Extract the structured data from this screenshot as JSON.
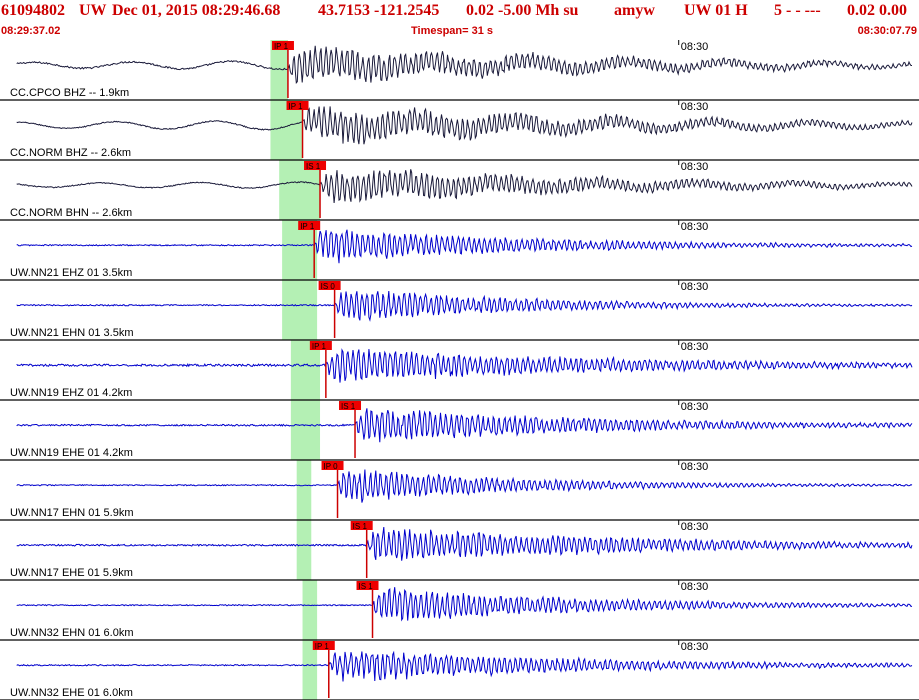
{
  "header": {
    "event_id": "61094802",
    "network": "UW",
    "date_time": "Dec 01, 2015 08:29:46.68",
    "location": "43.7153 -121.2545",
    "depth_mag": "0.02 -5.00 Mh su",
    "analyst": "amyw",
    "station_info": "UW 01 H",
    "quality": "5  -  - ---",
    "rms": "0.02 0.00",
    "start_time": "08:29:37.02",
    "timespan": "Timespan=  31 s",
    "end_time": "08:30:07.79"
  },
  "colors": {
    "header_text": "#cc0000",
    "trace_cc": "#1a1a3a",
    "trace_uw": "#0000cc",
    "pick_box": "#ee0000",
    "pick_line": "#cc0000",
    "pick_window": "#b4f0b4",
    "separator": "#000000"
  },
  "chart_data": {
    "type": "line",
    "title": "61094802 UW Dec 01, 2015 08:29:46.68",
    "time_axis": {
      "start": "08:29:37.02",
      "end": "08:30:07.79",
      "span_s": 31,
      "tick_label": "08:30",
      "tick_time_s": 23
    },
    "traces": [
      {
        "name": "CC.CPCO BHZ -- 1.9km",
        "net": "CC",
        "pick": "IP 1",
        "pick_time_s": 9.6,
        "window": [
          9.0,
          9.6
        ],
        "arrival_s": 9.6,
        "amp": 1.0,
        "noise": 0.15,
        "long_period": 0.55,
        "decay_s": 10
      },
      {
        "name": "CC.NORM BHZ -- 2.6km",
        "net": "CC",
        "pick": "IP 1",
        "pick_time_s": 10.1,
        "window": [
          9.0,
          10.1
        ],
        "arrival_s": 10.1,
        "amp": 1.0,
        "noise": 0.1,
        "long_period": 0.6,
        "decay_s": 10
      },
      {
        "name": "CC.NORM BHN -- 2.6km",
        "net": "CC",
        "pick": "IS 1",
        "pick_time_s": 10.7,
        "window": [
          9.3,
          10.7
        ],
        "arrival_s": 10.7,
        "amp": 1.0,
        "noise": 0.1,
        "long_period": 0.4,
        "decay_s": 9
      },
      {
        "name": "UW.NN21 EHZ 01 3.5km",
        "net": "UW",
        "pick": "IP 1",
        "pick_time_s": 10.5,
        "window": [
          9.4,
          10.6
        ],
        "arrival_s": 10.5,
        "amp": 1.0,
        "noise": 0.12,
        "long_period": 0,
        "decay_s": 7
      },
      {
        "name": "UW.NN21 EHN 01 3.5km",
        "net": "UW",
        "pick": "IS 0",
        "pick_time_s": 11.2,
        "window": [
          9.4,
          10.6
        ],
        "arrival_s": 11.2,
        "amp": 1.0,
        "noise": 0.12,
        "long_period": 0,
        "decay_s": 6
      },
      {
        "name": "UW.NN19 EHZ 01 4.2km",
        "net": "UW",
        "pick": "IP 1",
        "pick_time_s": 10.9,
        "window": [
          9.7,
          10.7
        ],
        "arrival_s": 10.9,
        "amp": 1.0,
        "noise": 0.2,
        "long_period": 0,
        "decay_s": 9
      },
      {
        "name": "UW.NN19 EHE 01 4.2km",
        "net": "UW",
        "pick": "IS 1",
        "pick_time_s": 11.9,
        "window": [
          9.7,
          10.7
        ],
        "arrival_s": 11.9,
        "amp": 1.0,
        "noise": 0.15,
        "long_period": 0,
        "decay_s": 8
      },
      {
        "name": "UW.NN17 EHN 01 5.9km",
        "net": "UW",
        "pick": "IP 0",
        "pick_time_s": 11.3,
        "window": [
          9.9,
          10.4
        ],
        "arrival_s": 11.3,
        "amp": 1.0,
        "noise": 0.1,
        "long_period": 0,
        "decay_s": 6
      },
      {
        "name": "UW.NN17 EHE 01 5.9km",
        "net": "UW",
        "pick": "IS 1",
        "pick_time_s": 12.3,
        "window": [
          9.9,
          10.4
        ],
        "arrival_s": 12.3,
        "amp": 1.0,
        "noise": 0.15,
        "long_period": 0,
        "decay_s": 9
      },
      {
        "name": "UW.NN32 EHN 01 6.0km",
        "net": "UW",
        "pick": "IS 1",
        "pick_time_s": 12.5,
        "window": [
          10.1,
          10.6
        ],
        "arrival_s": 12.5,
        "amp": 1.0,
        "noise": 0.1,
        "long_period": 0,
        "decay_s": 7
      },
      {
        "name": "UW.NN32 EHE 01 6.0km",
        "net": "UW",
        "pick": "IP 1",
        "pick_time_s": 11.0,
        "window": [
          10.1,
          10.6
        ],
        "arrival_s": 11.0,
        "amp": 1.0,
        "noise": 0.12,
        "long_period": 0,
        "decay_s": 8
      }
    ]
  }
}
